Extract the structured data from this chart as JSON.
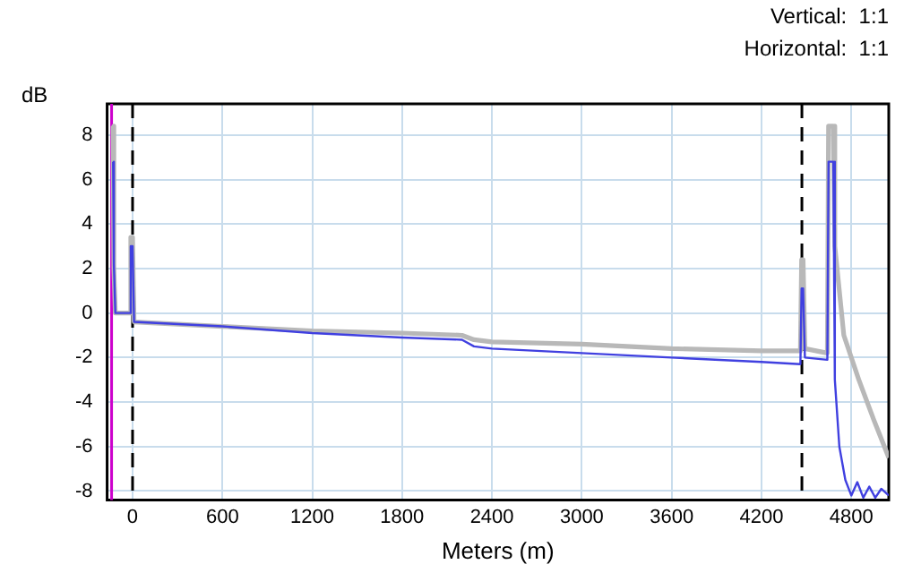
{
  "chart_data": {
    "type": "line",
    "xlabel": "Meters (m)",
    "ylabel": "dB",
    "annotations": [
      "Vertical:  1:1",
      "Horizontal:  1:1"
    ],
    "xlim": [
      -170,
      5050
    ],
    "ylim": [
      -8.4,
      9.4
    ],
    "xticks": [
      0,
      600,
      1200,
      1800,
      2400,
      3000,
      3600,
      4200,
      4800
    ],
    "yticks": [
      -8,
      -6,
      -4,
      -2,
      0,
      2,
      4,
      6,
      8
    ],
    "grid": true,
    "legend": false,
    "marker": "none",
    "line_style": "solid",
    "series": [
      {
        "color": "#b8b8b8",
        "x": [
          -130,
          -125,
          -115,
          -20,
          -12,
          0,
          10,
          600,
          1200,
          1800,
          2200,
          2280,
          2400,
          3000,
          3600,
          4200,
          4460,
          4468,
          4478,
          4490,
          4640,
          4648,
          4680,
          4690,
          4750,
          4850,
          4950,
          5050
        ],
        "values": [
          8.4,
          2.0,
          0.0,
          0.0,
          3.4,
          3.4,
          -0.4,
          -0.6,
          -0.8,
          -0.9,
          -1.0,
          -1.2,
          -1.3,
          -1.4,
          -1.6,
          -1.7,
          -1.7,
          2.4,
          2.4,
          -1.6,
          -1.8,
          8.4,
          8.4,
          3.0,
          -1.0,
          -3.0,
          -4.8,
          -6.5
        ]
      },
      {
        "color": "#4040e0",
        "x": [
          -130,
          -125,
          -115,
          -20,
          -12,
          0,
          10,
          600,
          1200,
          1800,
          2200,
          2280,
          2400,
          3000,
          3600,
          4200,
          4460,
          4468,
          4478,
          4490,
          4640,
          4648,
          4680,
          4690,
          4720,
          4760,
          4800,
          4840,
          4880,
          4920,
          4960,
          5000,
          5050
        ],
        "values": [
          6.8,
          2.2,
          0.0,
          0.0,
          3.0,
          3.0,
          -0.4,
          -0.6,
          -0.9,
          -1.1,
          -1.2,
          -1.5,
          -1.6,
          -1.8,
          -2.0,
          -2.2,
          -2.3,
          1.1,
          1.1,
          -2.0,
          -2.1,
          6.8,
          6.8,
          -3.0,
          -6.0,
          -7.5,
          -8.2,
          -7.6,
          -8.3,
          -7.8,
          -8.3,
          -7.9,
          -8.2
        ]
      }
    ],
    "ref_lines": [
      {
        "axis": "x",
        "value": 0,
        "color": "#000000",
        "line_style": "dashed"
      },
      {
        "axis": "x",
        "value": 4470,
        "color": "#000000",
        "line_style": "dashed"
      },
      {
        "axis": "x",
        "value": -140,
        "color": "#cc00cc",
        "line_style": "solid"
      }
    ]
  }
}
